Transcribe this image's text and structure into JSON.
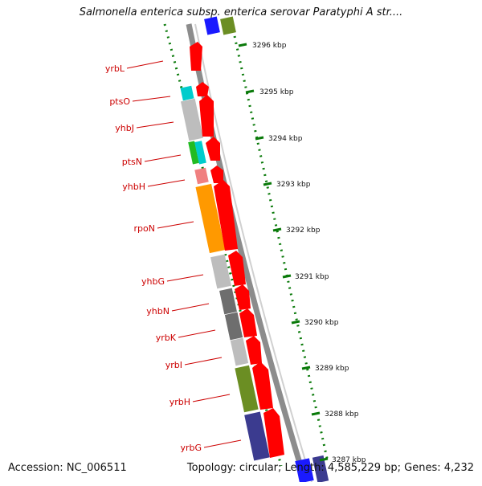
{
  "title": "Salmonella enterica subsp. enterica serovar Paratyphi A str....",
  "accession": "Accession: NC_006511",
  "summary": "Topology: circular; Length: 4,585,229 bp; Genes: 4,232",
  "ticks": [
    "3296 kbp",
    "3295 kbp",
    "3294 kbp",
    "3293 kbp",
    "3292 kbp",
    "3291 kbp",
    "3290 kbp",
    "3289 kbp",
    "3288 kbp",
    "3287 kbp"
  ],
  "genes": [
    "yrbL",
    "ptsO",
    "yhbJ",
    "ptsN",
    "yhbH",
    "rpoN",
    "yhbG",
    "yhbN",
    "yrbK",
    "yrbI",
    "yrbH",
    "yrbG"
  ],
  "colors": {
    "gene_arrow": "#ff0000",
    "label": "#cc0000",
    "tick": "#0a7a0a",
    "backbone": "#8c8c8c",
    "cog_blue": "#1a1aff",
    "cog_olive": "#6b8e23",
    "cog_navy": "#3b3b8f",
    "cog_orange": "#ff9900",
    "cog_cyan": "#00cccc",
    "cog_green": "#22bb22",
    "cog_pink": "#f08080",
    "cog_gray": "#bdbdbd",
    "cog_dark": "#6e6e6e"
  }
}
